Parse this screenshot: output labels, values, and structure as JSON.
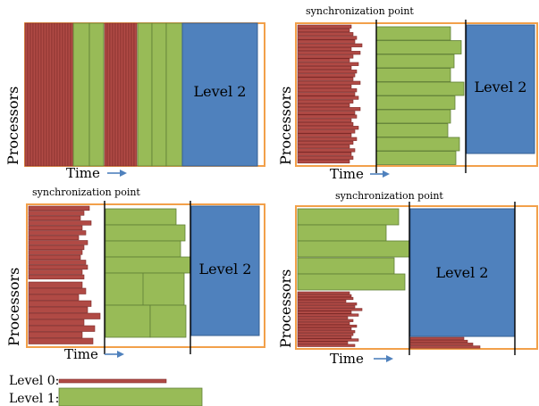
{
  "panels": [
    {
      "y_label": "Processors",
      "x_label": "Time",
      "sync_label": "",
      "level2_label": "Level 2"
    },
    {
      "y_label": "Processors",
      "x_label": "Time",
      "sync_label": "synchronization point",
      "level2_label": "Level 2"
    },
    {
      "y_label": "Processors",
      "x_label": "Time",
      "sync_label": "synchronization point",
      "level2_label": "Level 2"
    },
    {
      "y_label": "Processors",
      "x_label": "Time",
      "sync_label": "synchronization point",
      "level2_label": "Level 2"
    }
  ],
  "legend": [
    {
      "label": "Level 0:",
      "color": "#b04a45"
    },
    {
      "label": "Level 1:",
      "color": "#98bb57"
    }
  ],
  "colors": {
    "level0": "#b04a45",
    "level1": "#98bb57",
    "level2": "#4f81bd",
    "frame": "#f2a04a"
  }
}
